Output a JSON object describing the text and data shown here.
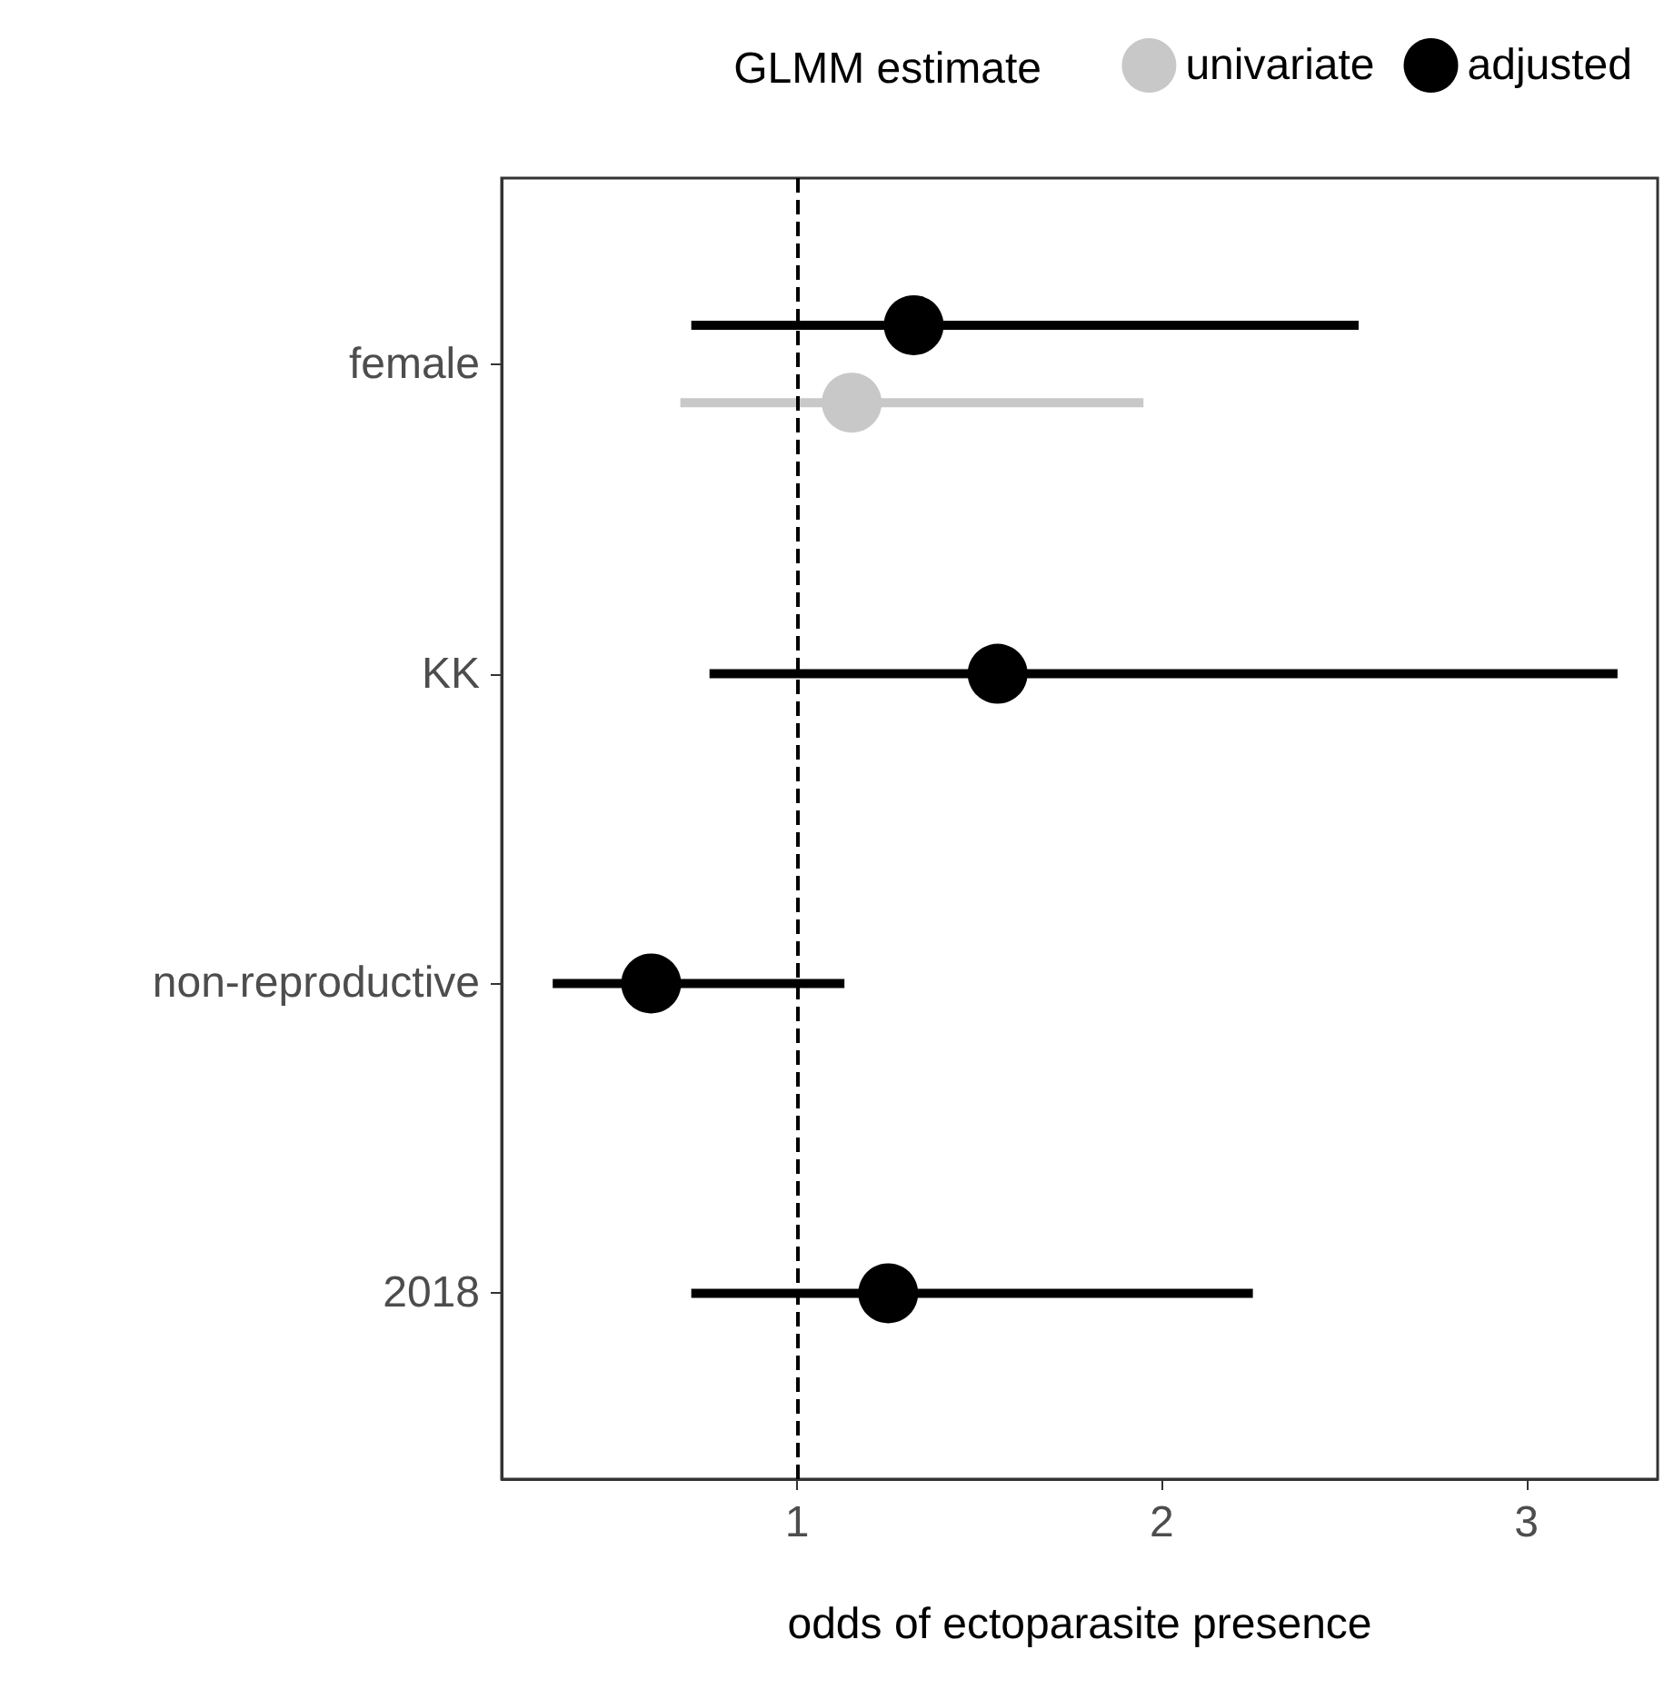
{
  "chart_data": {
    "type": "scatter",
    "orientation": "horizontal",
    "xlabel": "odds of ectoparasite presence",
    "legend_title": "GLMM estimate",
    "legend": "top right",
    "marker": "circle",
    "grid": false,
    "categories": [
      "female",
      "KK",
      "non-reproductive",
      "2018"
    ],
    "series": [
      {
        "name": "univariate",
        "color": "#c8c8c8",
        "values": [
          1.15,
          null,
          null,
          null
        ],
        "errors": [
          [
            0.68,
            1.95
          ],
          null,
          null,
          null
        ]
      },
      {
        "name": "adjusted",
        "color": "#000000",
        "values": [
          1.32,
          1.55,
          0.6,
          1.25
        ],
        "errors": [
          [
            0.71,
            2.54
          ],
          [
            0.76,
            3.25
          ],
          [
            0.33,
            1.13
          ],
          [
            0.71,
            2.25
          ]
        ]
      }
    ],
    "xlim": [
      0.19,
      3.36
    ],
    "xticks": [
      1,
      2,
      3
    ],
    "ref_lines": [
      {
        "axis": "x",
        "value": 1,
        "line_style": "dashed",
        "color": "#000000"
      }
    ]
  }
}
